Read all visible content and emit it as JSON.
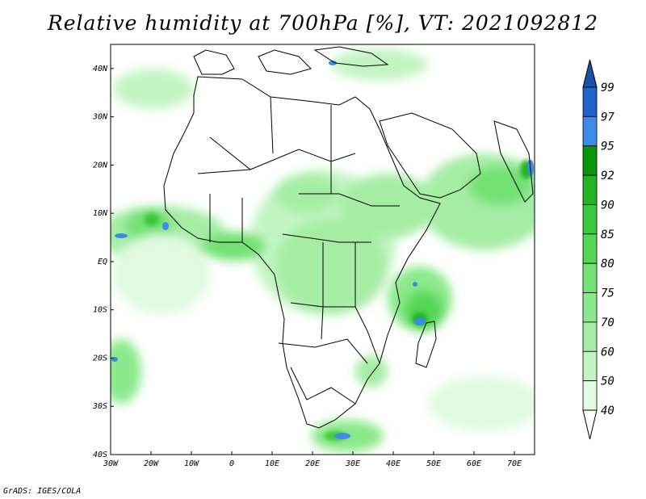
{
  "title": "Relative humidity at 700hPa [%], VT: 2021092812",
  "credit": "GrADS: IGES/COLA",
  "map": {
    "lat_labels": [
      "40N",
      "30N",
      "20N",
      "10N",
      "EQ",
      "10S",
      "20S",
      "30S",
      "40S"
    ],
    "lat_values": [
      40,
      30,
      20,
      10,
      0,
      -10,
      -20,
      -30,
      -40
    ],
    "lon_labels": [
      "30W",
      "20W",
      "10W",
      "0",
      "10E",
      "20E",
      "30E",
      "40E",
      "50E",
      "60E",
      "70E"
    ],
    "lon_values": [
      -30,
      -20,
      -10,
      0,
      10,
      20,
      30,
      40,
      50,
      60,
      70
    ],
    "extent": {
      "lon_min": -30,
      "lon_max": 75,
      "lat_min": -40,
      "lat_max": 45
    }
  },
  "colorbar": {
    "levels": [
      "99",
      "97",
      "95",
      "92",
      "90",
      "85",
      "80",
      "75",
      "70",
      "60",
      "50",
      "40"
    ],
    "colors": [
      "#1e64c8",
      "#3c8ce6",
      "#0a960a",
      "#23b423",
      "#3cc83c",
      "#55d755",
      "#73e173",
      "#8be98b",
      "#a5eda5",
      "#c3f5c3",
      "#e1fae1"
    ],
    "above_color": "#1e50aa",
    "below_color": "#ffffff"
  },
  "moist_regions": [
    {
      "name": "central-africa",
      "level": 70
    },
    {
      "name": "ethiopian-highlands",
      "level": 80
    },
    {
      "name": "atlantic-itcz",
      "level": 85
    },
    {
      "name": "west-africa-coast",
      "level": 75
    },
    {
      "name": "arabian-sea",
      "level": 80
    },
    {
      "name": "mozambique-channel",
      "level": 90
    },
    {
      "name": "south-africa-coast",
      "level": 92
    }
  ]
}
